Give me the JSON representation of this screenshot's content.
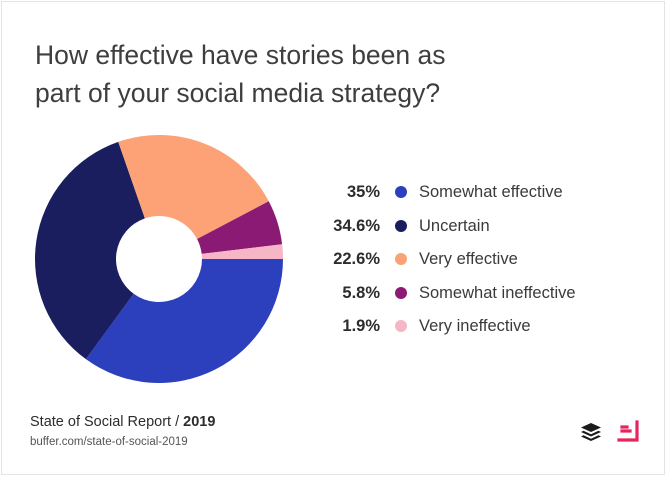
{
  "title": {
    "line1": "How effective have stories been as",
    "line2": "part of your social media strategy?"
  },
  "chart_data": {
    "type": "pie",
    "donut": true,
    "legend_position": "right",
    "slices": [
      {
        "label": "Somewhat effective",
        "value": 35,
        "value_label": "35%",
        "color": "#2c3fbd"
      },
      {
        "label": "Uncertain",
        "value": 34.6,
        "value_label": "34.6%",
        "color": "#1a1e5e"
      },
      {
        "label": "Very effective",
        "value": 22.6,
        "value_label": "22.6%",
        "color": "#fca276"
      },
      {
        "label": "Somewhat ineffective",
        "value": 5.8,
        "value_label": "5.8%",
        "color": "#8b1a74"
      },
      {
        "label": "Very ineffective",
        "value": 1.9,
        "value_label": "1.9%",
        "color": "#f7b6c6"
      }
    ]
  },
  "footer": {
    "report": "State of Social Report / ",
    "year": "2019",
    "url": "buffer.com/state-of-social-2019"
  },
  "logos": {
    "buffer": "buffer-logo-icon",
    "secondary": "pink-bracket-logo-icon",
    "buffer_color": "#1b1b1b",
    "secondary_color": "#e6245e"
  }
}
